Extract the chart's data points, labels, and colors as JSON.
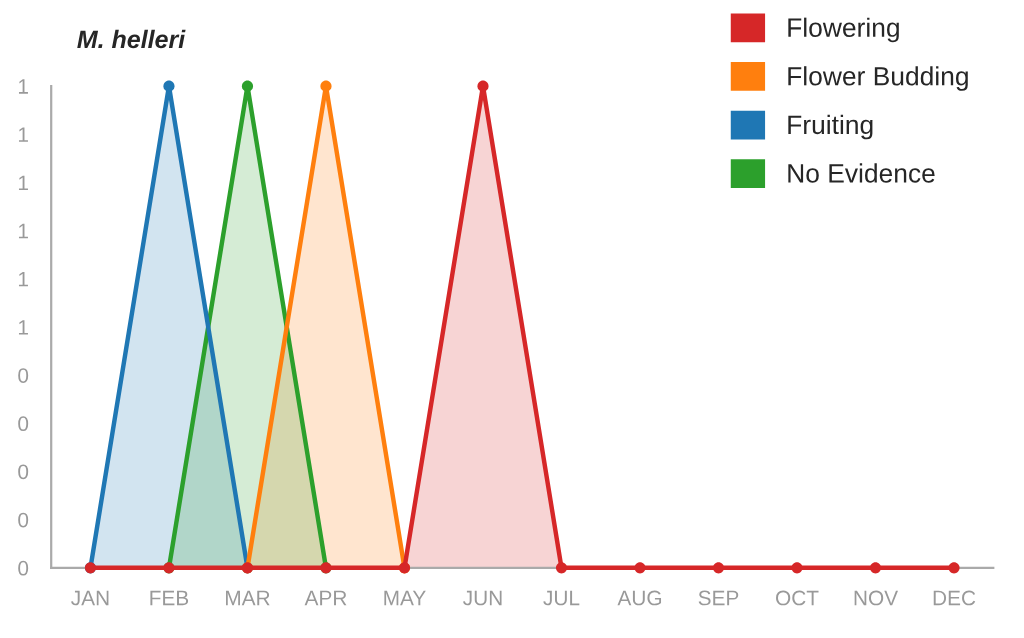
{
  "chart_data": {
    "type": "area",
    "title": "M. helleri",
    "categories": [
      "JAN",
      "FEB",
      "MAR",
      "APR",
      "MAY",
      "JUN",
      "JUL",
      "AUG",
      "SEP",
      "OCT",
      "NOV",
      "DEC"
    ],
    "series": [
      {
        "name": "Flowering",
        "color": "#d62728",
        "values": [
          0,
          0,
          0,
          0,
          0,
          1,
          0,
          0,
          0,
          0,
          0,
          0
        ]
      },
      {
        "name": "Flower Budding",
        "color": "#ff7f0e",
        "values": [
          null,
          null,
          0,
          1,
          0,
          null,
          null,
          null,
          null,
          null,
          null,
          null
        ]
      },
      {
        "name": "Fruiting",
        "color": "#1f77b4",
        "values": [
          0,
          1,
          0,
          null,
          null,
          null,
          null,
          null,
          null,
          null,
          null,
          null
        ]
      },
      {
        "name": "No Evidence",
        "color": "#2ca02c",
        "values": [
          null,
          0,
          1,
          0,
          null,
          null,
          null,
          null,
          null,
          null,
          null,
          null
        ]
      }
    ],
    "ylim": [
      0,
      1
    ],
    "yticks": [
      0,
      {
        "value": 0.1,
        "label": "0"
      },
      {
        "value": 0.2,
        "label": "0"
      },
      {
        "value": 0.3,
        "label": "0"
      },
      {
        "value": 0.4,
        "label": "0"
      },
      {
        "value": 0.5,
        "label": "1"
      },
      {
        "value": 0.6,
        "label": "1"
      },
      {
        "value": 0.7,
        "label": "1"
      },
      {
        "value": 0.8,
        "label": "1"
      },
      {
        "value": 0.9,
        "label": "1"
      },
      1
    ],
    "legend": "top right",
    "grid": false,
    "marker": "circle",
    "line_style": "solid"
  }
}
